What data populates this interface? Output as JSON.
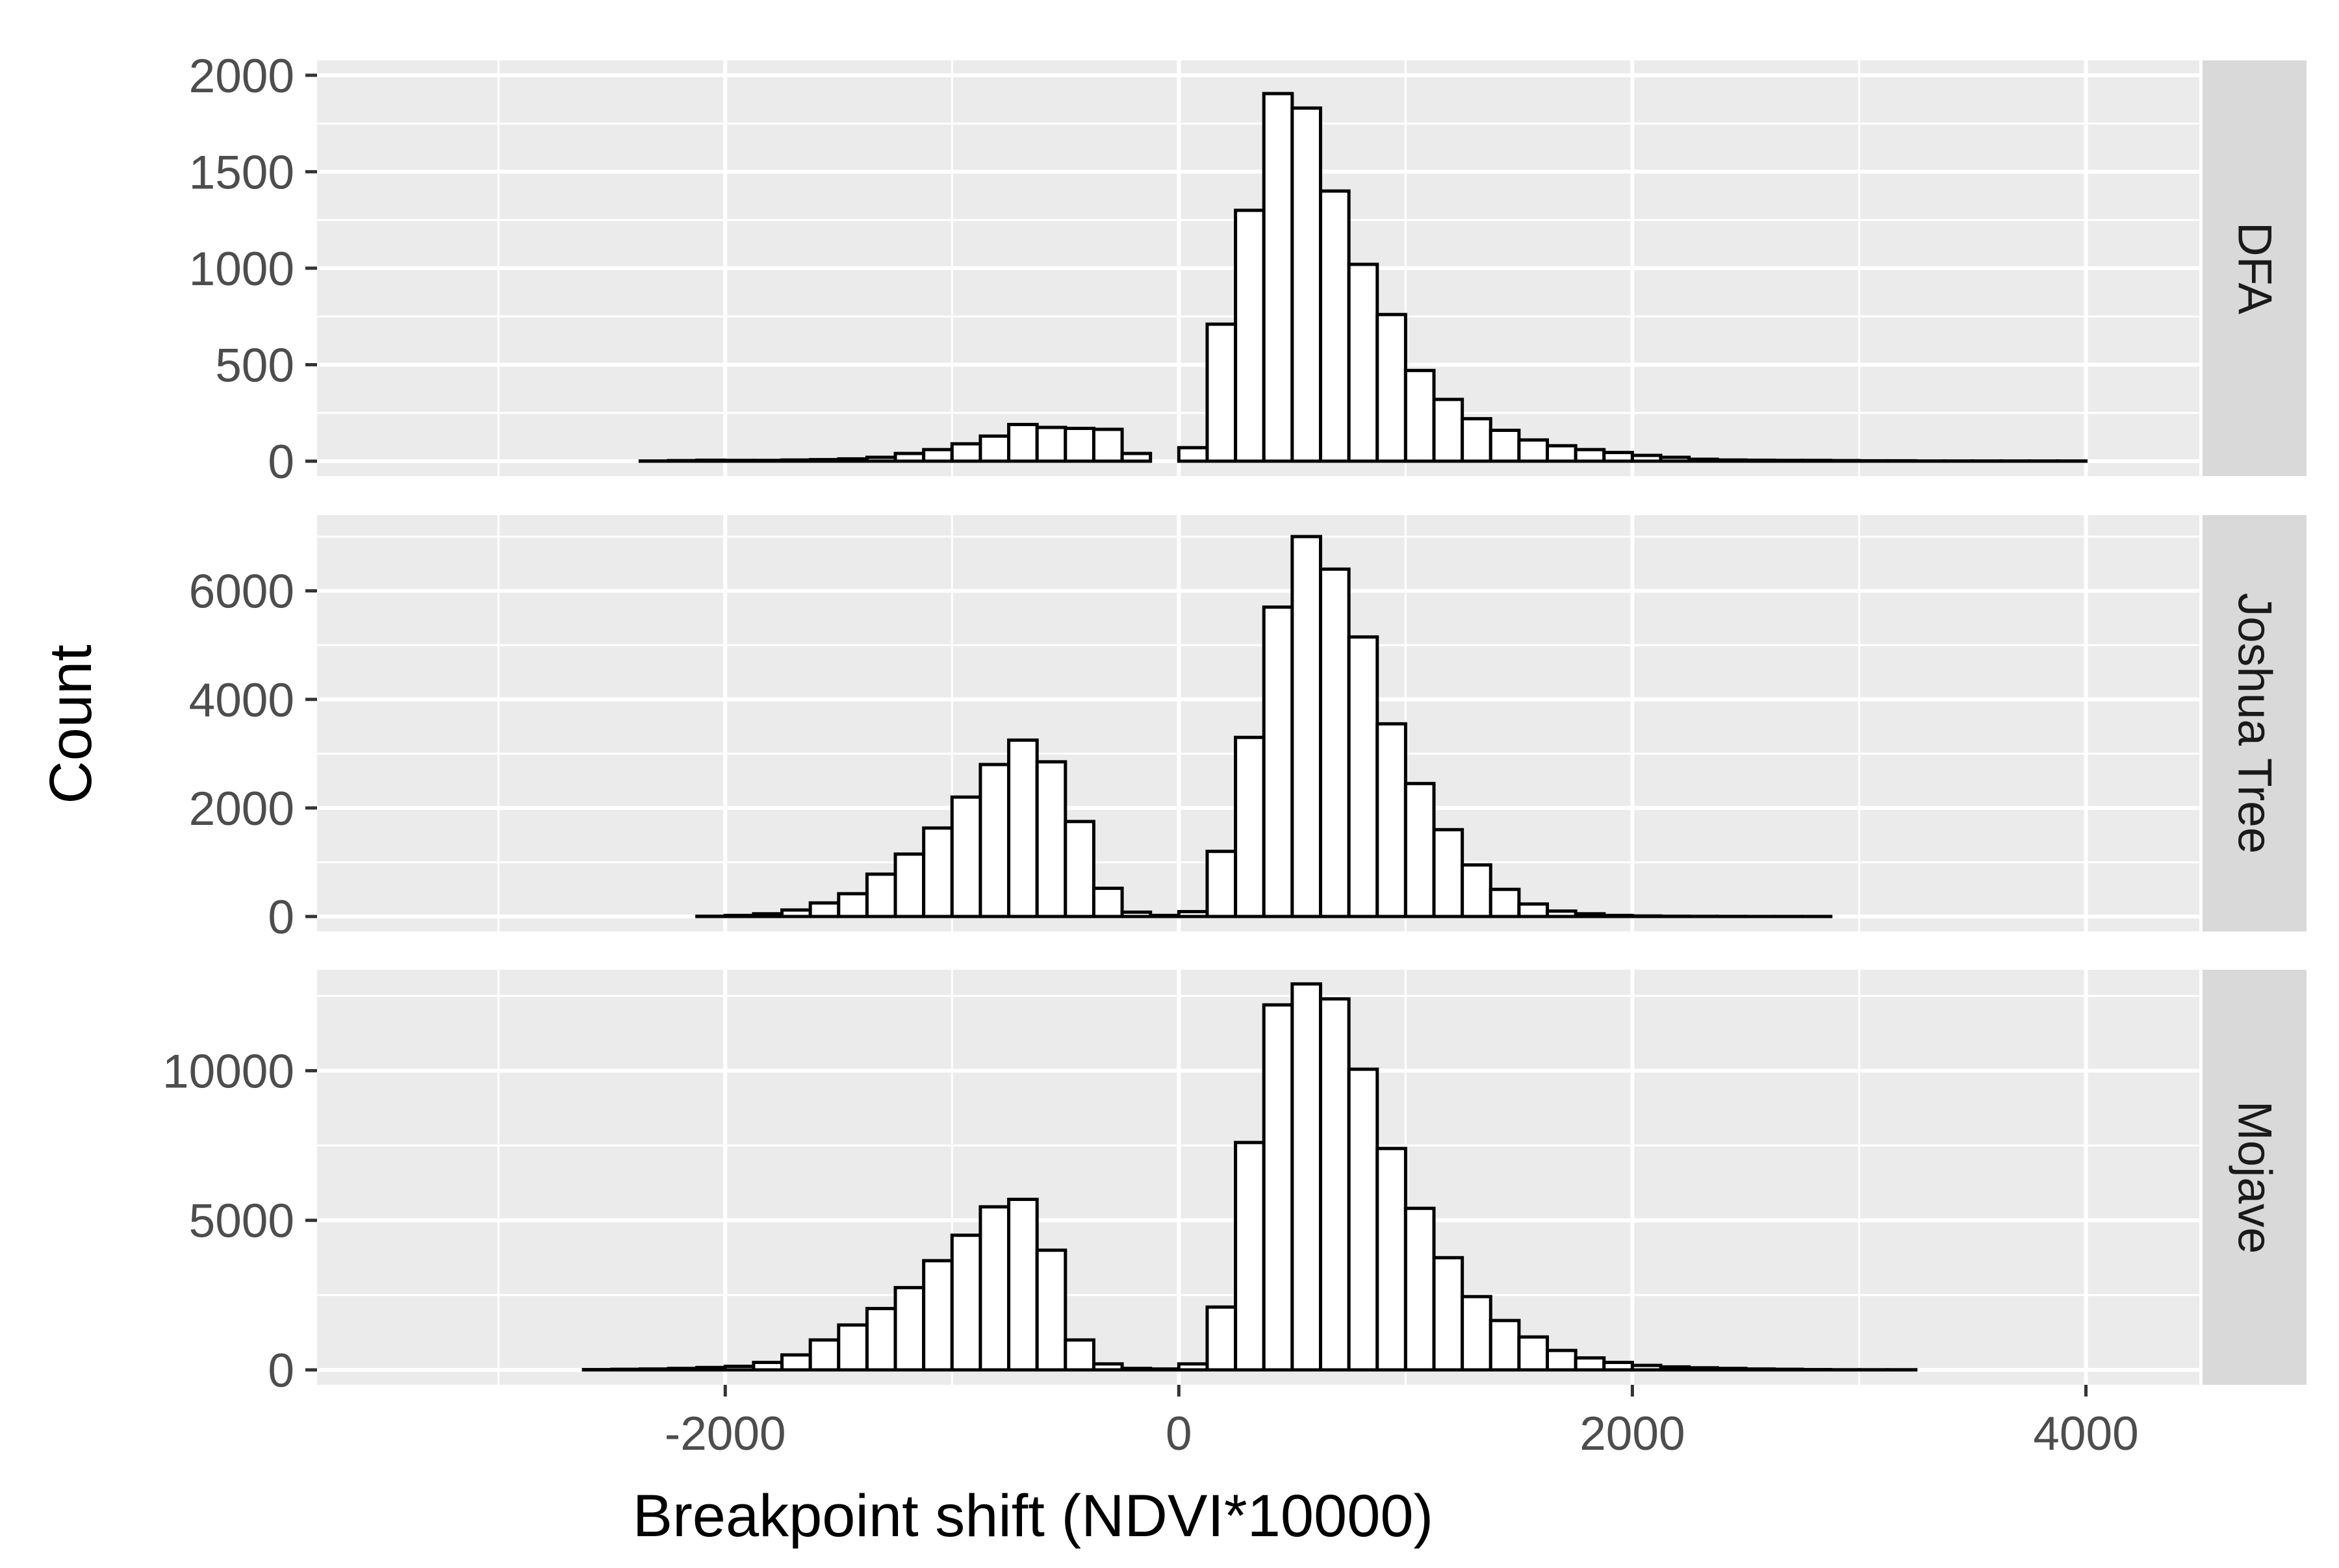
{
  "chart_data": {
    "type": "bar",
    "subtype": "faceted-histogram",
    "xlabel": "Breakpoint shift (NDVI*10000)",
    "ylabel": "Count",
    "x_ticks": [
      -2000,
      0,
      2000,
      4000
    ],
    "x_tick_labels": [
      "-2000",
      "0",
      "2000",
      "4000"
    ],
    "xlim": [
      -3800,
      4500
    ],
    "bin_width": 125,
    "bin_centers": [
      -3312.5,
      -3187.5,
      -3062.5,
      -2937.5,
      -2812.5,
      -2687.5,
      -2562.5,
      -2437.5,
      -2312.5,
      -2187.5,
      -2062.5,
      -1937.5,
      -1812.5,
      -1687.5,
      -1562.5,
      -1437.5,
      -1312.5,
      -1187.5,
      -1062.5,
      -937.5,
      -812.5,
      -687.5,
      -562.5,
      -437.5,
      -312.5,
      -187.5,
      -62.5,
      62.5,
      187.5,
      312.5,
      437.5,
      562.5,
      687.5,
      812.5,
      937.5,
      1062.5,
      1187.5,
      1312.5,
      1437.5,
      1562.5,
      1687.5,
      1812.5,
      1937.5,
      2062.5,
      2187.5,
      2312.5,
      2437.5,
      2562.5,
      2687.5,
      2812.5,
      2937.5,
      3062.5,
      3187.5,
      3312.5,
      3437.5,
      3562.5,
      3687.5,
      3812.5,
      3937.5,
      4062.5,
      4187.5
    ],
    "grid": true,
    "legend": "none",
    "facets": [
      {
        "name": "DFA",
        "ylim": [
          0,
          2050
        ],
        "y_ticks": [
          0,
          500,
          1000,
          1500,
          2000
        ],
        "y_tick_labels": [
          "0",
          "500",
          "1000",
          "1500",
          "2000"
        ],
        "values": [
          0,
          0,
          0,
          0,
          0,
          0,
          0,
          0,
          1,
          3,
          5,
          4,
          4,
          6,
          8,
          12,
          20,
          40,
          60,
          90,
          130,
          190,
          175,
          170,
          165,
          40,
          0,
          70,
          710,
          1300,
          1905,
          1830,
          1400,
          1020,
          760,
          470,
          320,
          220,
          160,
          110,
          80,
          60,
          45,
          30,
          20,
          10,
          6,
          5,
          4,
          4,
          3,
          2,
          2,
          1,
          1,
          1,
          1,
          1,
          1,
          0,
          0
        ]
      },
      {
        "name": "Joshua Tree",
        "ylim": [
          0,
          7300
        ],
        "y_ticks": [
          0,
          2000,
          4000,
          6000
        ],
        "y_tick_labels": [
          "0",
          "2000",
          "4000",
          "6000"
        ],
        "values": [
          0,
          0,
          0,
          0,
          0,
          0,
          0,
          0,
          0,
          0,
          5,
          20,
          50,
          120,
          250,
          420,
          780,
          1150,
          1630,
          2200,
          2800,
          3250,
          2850,
          1750,
          520,
          80,
          20,
          90,
          1200,
          3300,
          5700,
          7000,
          6400,
          5150,
          3550,
          2450,
          1600,
          950,
          500,
          230,
          100,
          50,
          20,
          10,
          5,
          3,
          2,
          1,
          1,
          1,
          0,
          0,
          0,
          0,
          0,
          0,
          0,
          0,
          0,
          0,
          0
        ]
      },
      {
        "name": "Mojave",
        "ylim": [
          0,
          13200
        ],
        "y_ticks": [
          0,
          5000,
          10000
        ],
        "y_tick_labels": [
          "0",
          "5000",
          "10000"
        ],
        "values": [
          0,
          0,
          0,
          0,
          0,
          0,
          10,
          20,
          30,
          50,
          80,
          120,
          250,
          500,
          1000,
          1500,
          2050,
          2750,
          3650,
          4500,
          5450,
          5700,
          4000,
          1000,
          200,
          50,
          30,
          200,
          2100,
          7600,
          12200,
          12900,
          12400,
          10050,
          7400,
          5400,
          3750,
          2450,
          1650,
          1100,
          650,
          400,
          250,
          150,
          100,
          70,
          50,
          30,
          20,
          10,
          5,
          5,
          5,
          0,
          0,
          0,
          0,
          0,
          0,
          0,
          0
        ]
      }
    ]
  },
  "colors": {
    "panel_background": "#ebebeb",
    "grid_line": "#ffffff",
    "strip_background": "#d9d9d9",
    "bar_fill": "#ffffff",
    "bar_outline": "#000000",
    "tick_label": "#4d4d4d"
  }
}
